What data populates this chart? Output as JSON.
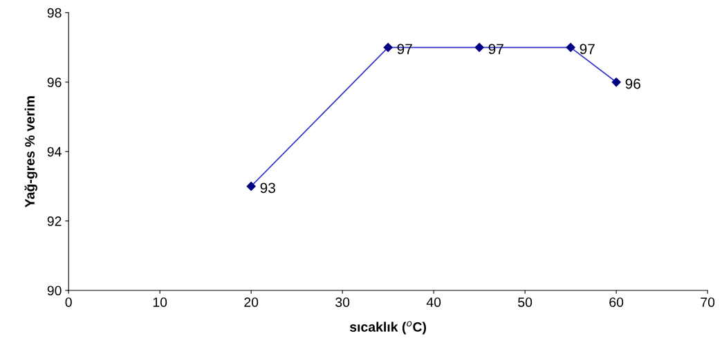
{
  "chart_data": {
    "type": "line",
    "xlabel": "sıcaklık ($^{o}$C)",
    "ylabel": "Yağ-gres % verim",
    "x": [
      20,
      35,
      45,
      55,
      60
    ],
    "series": [
      {
        "color": "#000080",
        "values": [
          93,
          97,
          97,
          97,
          96
        ]
      }
    ],
    "xlim": [
      0,
      70
    ],
    "xticks": [
      0,
      10,
      20,
      30,
      40,
      50,
      60,
      70
    ],
    "ylim": [
      90,
      98
    ],
    "yticks": [
      90,
      92,
      94,
      96,
      98
    ],
    "grid": false,
    "legend": false,
    "marker": "diamond",
    "line_style": "solid",
    "data_labels": true
  }
}
